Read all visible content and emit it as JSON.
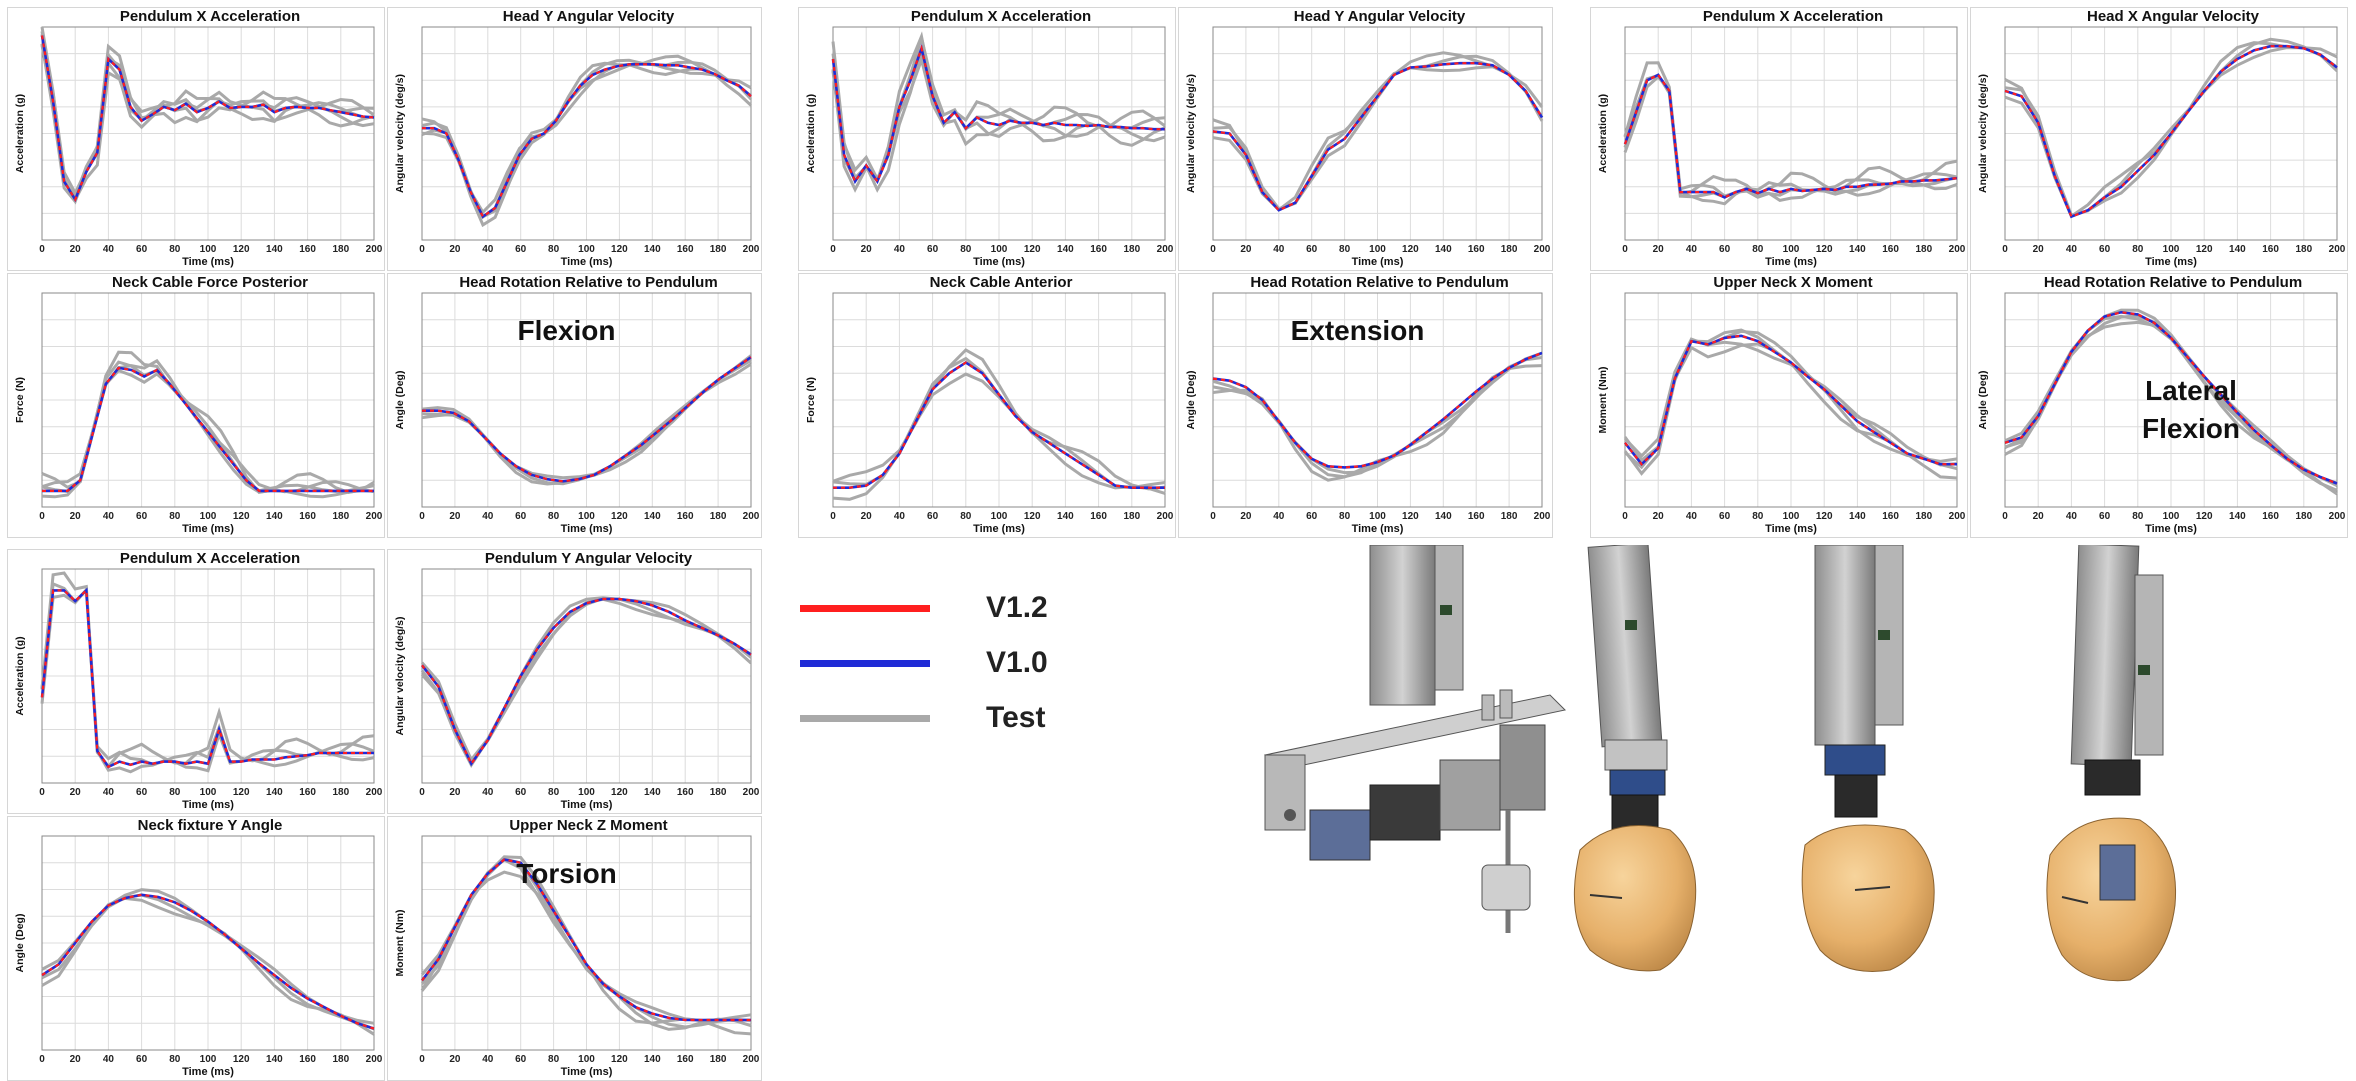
{
  "colors": {
    "v12": "#ff1f1f",
    "v10": "#1f2bd6",
    "test": "#a9a9a9",
    "grid": "#dcdcdc",
    "axis": "#333333"
  },
  "legend": [
    {
      "label": "V1.2",
      "color": "#ff1f1f"
    },
    {
      "label": "V1.0",
      "color": "#1f2bd6"
    },
    {
      "label": "Test",
      "color": "#a9a9a9"
    }
  ],
  "chart_data": [
    {
      "id": "c1",
      "title": "Pendulum X Acceleration",
      "ylabel": "Acceleration (g)",
      "xlabel": "Time (ms)",
      "xlim": [
        0,
        200
      ],
      "ylim": [
        -1,
        1
      ],
      "y": [
        0.92,
        0.3,
        -0.45,
        -0.62,
        -0.36,
        -0.18,
        0.7,
        0.6,
        0.25,
        0.12,
        0.18,
        0.25,
        0.22,
        0.28,
        0.2,
        0.24,
        0.3,
        0.24,
        0.25,
        0.25,
        0.27,
        0.2,
        0.24,
        0.25,
        0.24,
        0.24,
        0.22,
        0.2,
        0.18,
        0.16,
        0.15
      ],
      "test_dy": [
        0.08,
        -0.08,
        0.12,
        -0.12,
        0.05
      ],
      "annotation": ""
    },
    {
      "id": "c2",
      "title": "Head Y Angular Velocity",
      "ylabel": "Angular velocity (deg/s)",
      "xlabel": "Time (ms)",
      "xlim": [
        0,
        200
      ],
      "ylim": [
        -1,
        1
      ],
      "y": [
        0.05,
        0.05,
        0.0,
        -0.25,
        -0.55,
        -0.78,
        -0.7,
        -0.45,
        -0.2,
        -0.05,
        0.0,
        0.12,
        0.3,
        0.45,
        0.55,
        0.6,
        0.63,
        0.65,
        0.65,
        0.65,
        0.64,
        0.64,
        0.62,
        0.6,
        0.56,
        0.5,
        0.45,
        0.35
      ],
      "test_dy": [
        0.05,
        -0.05,
        0.08,
        -0.08
      ],
      "annotation": ""
    },
    {
      "id": "c3",
      "title": "Neck Cable Force Posterior",
      "ylabel": "Force (N)",
      "xlabel": "Time (ms)",
      "xlim": [
        0,
        200
      ],
      "ylim": [
        -1,
        1
      ],
      "y": [
        -0.85,
        -0.85,
        -0.85,
        -0.75,
        -0.3,
        0.15,
        0.3,
        0.28,
        0.22,
        0.28,
        0.15,
        0.0,
        -0.15,
        -0.3,
        -0.45,
        -0.6,
        -0.75,
        -0.85,
        -0.85,
        -0.85,
        -0.85,
        -0.85,
        -0.85,
        -0.85,
        -0.85,
        -0.85,
        -0.85
      ],
      "test_dy": [
        0.08,
        -0.05,
        0.15,
        0.05
      ],
      "annotation": ""
    },
    {
      "id": "c4",
      "title": "Head Rotation Relative to Pendulum",
      "ylabel": "Angle (Deg)",
      "xlabel": "Time (ms)",
      "xlim": [
        0,
        200
      ],
      "ylim": [
        -1,
        1
      ],
      "y": [
        -0.1,
        -0.1,
        -0.12,
        -0.2,
        -0.35,
        -0.5,
        -0.62,
        -0.7,
        -0.74,
        -0.76,
        -0.74,
        -0.7,
        -0.62,
        -0.52,
        -0.42,
        -0.3,
        -0.18,
        -0.05,
        0.08,
        0.2,
        0.3,
        0.4
      ],
      "test_dy": [
        0.03,
        -0.03,
        -0.06
      ],
      "annotation": "Flexion"
    },
    {
      "id": "c5",
      "title": "Pendulum X Acceleration",
      "ylabel": "Acceleration (g)",
      "xlabel": "Time (ms)",
      "xlim": [
        0,
        200
      ],
      "ylim": [
        -1,
        1
      ],
      "y": [
        0.7,
        -0.2,
        -0.45,
        -0.3,
        -0.45,
        -0.2,
        0.25,
        0.5,
        0.8,
        0.35,
        0.1,
        0.2,
        0.05,
        0.15,
        0.1,
        0.08,
        0.12,
        0.1,
        0.1,
        0.08,
        0.1,
        0.08,
        0.08,
        0.07,
        0.08,
        0.06,
        0.06,
        0.05,
        0.05,
        0.04,
        0.04
      ],
      "test_dy": [
        0.1,
        -0.1,
        0.15,
        -0.15
      ],
      "annotation": ""
    },
    {
      "id": "c6",
      "title": "Head Y Angular Velocity",
      "ylabel": "Angular velocity (deg/s)",
      "xlabel": "Time (ms)",
      "xlim": [
        0,
        200
      ],
      "ylim": [
        -1,
        1
      ],
      "y": [
        0.02,
        0.0,
        -0.2,
        -0.55,
        -0.72,
        -0.65,
        -0.4,
        -0.15,
        -0.05,
        0.15,
        0.35,
        0.55,
        0.62,
        0.63,
        0.65,
        0.66,
        0.66,
        0.64,
        0.55,
        0.4,
        0.15
      ],
      "test_dy": [
        0.06,
        -0.06,
        0.1
      ],
      "annotation": ""
    },
    {
      "id": "c7",
      "title": "Neck Cable Anterior",
      "ylabel": "Force (N)",
      "xlabel": "Time (ms)",
      "xlim": [
        0,
        200
      ],
      "ylim": [
        -1,
        1
      ],
      "y": [
        -0.82,
        -0.82,
        -0.8,
        -0.7,
        -0.5,
        -0.2,
        0.1,
        0.25,
        0.35,
        0.25,
        0.05,
        -0.15,
        -0.3,
        -0.4,
        -0.5,
        -0.6,
        -0.7,
        -0.8,
        -0.82,
        -0.82,
        -0.82
      ],
      "test_dy": [
        0.12,
        -0.1,
        0.05
      ],
      "annotation": ""
    },
    {
      "id": "c8",
      "title": "Head Rotation Relative to Pendulum",
      "ylabel": "Angle (Deg)",
      "xlabel": "Time (ms)",
      "xlim": [
        0,
        200
      ],
      "ylim": [
        -1,
        1
      ],
      "y": [
        0.2,
        0.18,
        0.12,
        0.0,
        -0.2,
        -0.4,
        -0.55,
        -0.62,
        -0.63,
        -0.62,
        -0.58,
        -0.52,
        -0.42,
        -0.3,
        -0.18,
        -0.05,
        0.08,
        0.2,
        0.3,
        0.38,
        0.44
      ],
      "test_dy": [
        -0.05,
        -0.08,
        -0.12
      ],
      "annotation": "Extension"
    },
    {
      "id": "c9",
      "title": "Pendulum X Acceleration",
      "ylabel": "Acceleration (g)",
      "xlabel": "Time (ms)",
      "xlim": [
        0,
        200
      ],
      "ylim": [
        -1,
        1
      ],
      "y": [
        -0.1,
        0.2,
        0.5,
        0.55,
        0.4,
        -0.55,
        -0.55,
        -0.55,
        -0.55,
        -0.6,
        -0.55,
        -0.52,
        -0.56,
        -0.52,
        -0.55,
        -0.52,
        -0.54,
        -0.53,
        -0.52,
        -0.53,
        -0.5,
        -0.5,
        -0.48,
        -0.48,
        -0.47,
        -0.45,
        -0.45,
        -0.44,
        -0.44,
        -0.43,
        -0.42
      ],
      "test_dy": [
        0.15,
        -0.08,
        0.06,
        -0.04
      ],
      "annotation": ""
    },
    {
      "id": "c10",
      "title": "Head X Angular Velocity",
      "ylabel": "Angular velocity (deg/s)",
      "xlabel": "Time (ms)",
      "xlim": [
        0,
        200
      ],
      "ylim": [
        -1,
        1
      ],
      "y": [
        0.4,
        0.35,
        0.1,
        -0.4,
        -0.78,
        -0.72,
        -0.6,
        -0.5,
        -0.35,
        -0.2,
        0.0,
        0.2,
        0.4,
        0.58,
        0.7,
        0.78,
        0.82,
        0.82,
        0.8,
        0.74,
        0.62
      ],
      "test_dy": [
        0.06,
        -0.06,
        0.1
      ],
      "annotation": ""
    },
    {
      "id": "c11",
      "title": "Upper Neck X Moment",
      "ylabel": "Moment (Nm)",
      "xlabel": "Time (ms)",
      "xlim": [
        0,
        200
      ],
      "ylim": [
        -1,
        1
      ],
      "y": [
        -0.4,
        -0.6,
        -0.45,
        0.2,
        0.55,
        0.52,
        0.58,
        0.6,
        0.55,
        0.45,
        0.35,
        0.22,
        0.1,
        -0.05,
        -0.2,
        -0.3,
        -0.4,
        -0.5,
        -0.55,
        -0.6,
        -0.6
      ],
      "test_dy": [
        0.08,
        -0.08,
        0.05,
        -0.12
      ],
      "annotation": ""
    },
    {
      "id": "c12",
      "title": "Head Rotation Relative to Pendulum",
      "ylabel": "Angle (Deg)",
      "xlabel": "Time (ms)",
      "xlim": [
        0,
        200
      ],
      "ylim": [
        -1,
        1
      ],
      "y": [
        -0.4,
        -0.35,
        -0.15,
        0.15,
        0.45,
        0.65,
        0.78,
        0.82,
        0.8,
        0.72,
        0.58,
        0.4,
        0.22,
        0.05,
        -0.12,
        -0.28,
        -0.42,
        -0.55,
        -0.65,
        -0.72,
        -0.78
      ],
      "test_dy": [
        0.04,
        -0.04,
        -0.1,
        -0.06
      ],
      "annotation": "Lateral\nFlexion"
    },
    {
      "id": "c13",
      "title": "Pendulum X Acceleration",
      "ylabel": "Acceleration (g)",
      "xlabel": "Time (ms)",
      "xlim": [
        0,
        200
      ],
      "ylim": [
        -1,
        1
      ],
      "y": [
        -0.2,
        0.8,
        0.8,
        0.7,
        0.8,
        -0.7,
        -0.85,
        -0.8,
        -0.83,
        -0.8,
        -0.82,
        -0.8,
        -0.8,
        -0.82,
        -0.8,
        -0.82,
        -0.5,
        -0.8,
        -0.8,
        -0.78,
        -0.78,
        -0.78,
        -0.76,
        -0.75,
        -0.74,
        -0.72,
        -0.72,
        -0.72,
        -0.72,
        -0.72,
        -0.72
      ],
      "test_dy": [
        0.15,
        -0.06,
        0.08
      ],
      "annotation": ""
    },
    {
      "id": "c14",
      "title": "Pendulum Y Angular Velocity",
      "ylabel": "Angular velocity (deg/s)",
      "xlabel": "Time (ms)",
      "xlim": [
        0,
        200
      ],
      "ylim": [
        -1,
        1
      ],
      "y": [
        0.1,
        -0.1,
        -0.5,
        -0.82,
        -0.6,
        -0.3,
        0.0,
        0.25,
        0.45,
        0.6,
        0.68,
        0.72,
        0.72,
        0.7,
        0.66,
        0.6,
        0.52,
        0.45,
        0.38,
        0.3,
        0.2
      ],
      "test_dy": [
        0.05,
        -0.05,
        -0.08
      ],
      "annotation": ""
    },
    {
      "id": "c15",
      "title": "Neck fixture Y Angle",
      "ylabel": "Angle (Deg)",
      "xlabel": "Time (ms)",
      "xlim": [
        0,
        200
      ],
      "ylim": [
        -1,
        1
      ],
      "y": [
        -0.3,
        -0.2,
        0.0,
        0.2,
        0.35,
        0.42,
        0.45,
        0.43,
        0.38,
        0.3,
        0.2,
        0.08,
        -0.05,
        -0.18,
        -0.3,
        -0.42,
        -0.52,
        -0.6,
        -0.68,
        -0.75,
        -0.8
      ],
      "test_dy": [
        -0.05,
        -0.1,
        0.05
      ],
      "annotation": ""
    },
    {
      "id": "c16",
      "title": "Upper Neck Z Moment",
      "ylabel": "Moment (Nm)",
      "xlabel": "Time (ms)",
      "xlim": [
        0,
        200
      ],
      "ylim": [
        -1,
        1
      ],
      "y": [
        -0.35,
        -0.15,
        0.15,
        0.45,
        0.65,
        0.78,
        0.75,
        0.55,
        0.3,
        0.05,
        -0.2,
        -0.38,
        -0.5,
        -0.6,
        -0.66,
        -0.7,
        -0.72,
        -0.72,
        -0.72,
        -0.72,
        -0.72
      ],
      "test_dy": [
        -0.06,
        -0.1,
        0.05,
        -0.12
      ],
      "annotation": "Torsion"
    }
  ],
  "xticks": [
    "0",
    "20",
    "40",
    "60",
    "80",
    "100",
    "120",
    "140",
    "160",
    "180",
    "200"
  ]
}
